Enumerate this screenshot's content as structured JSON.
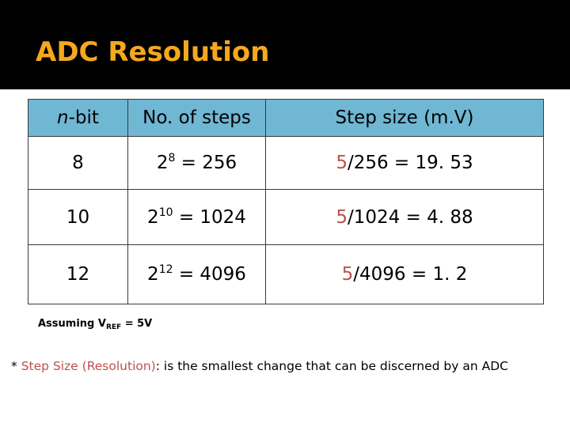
{
  "slide": {
    "title": "ADC Resolution",
    "accent_color": "#f4a81d",
    "header_fill": "#6fb7d3"
  },
  "table": {
    "headers": {
      "nbit_italic": "n",
      "nbit_rest": "-bit",
      "steps": "No. of steps",
      "stepsize": "Step size (m.V)"
    },
    "rows": [
      {
        "n": "8",
        "base": "2",
        "exp": "8",
        "steps_eq": " = 256",
        "num": "5",
        "rest": "/256 = 19. 53"
      },
      {
        "n": "10",
        "base": "2",
        "exp": "10",
        "steps_eq": " = 1024",
        "num": "5",
        "rest": "/1024 = 4. 88"
      },
      {
        "n": "12",
        "base": "2",
        "exp": "12",
        "steps_eq": " = 4096",
        "num": "5",
        "rest": "/4096 = 1. 2"
      }
    ]
  },
  "assumption": {
    "prefix": "Assuming V",
    "subscript": "REF",
    "suffix": " = 5V"
  },
  "footnote": {
    "star": "* ",
    "term": "Step Size (Resolution)",
    "text": ": is the smallest change that can be discerned by an ADC"
  }
}
